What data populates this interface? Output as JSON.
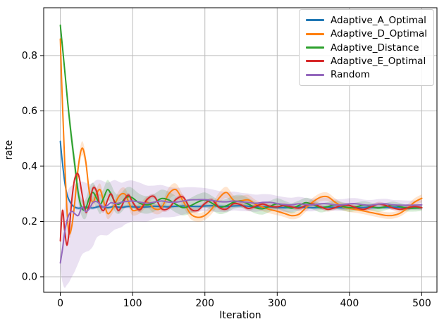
{
  "chart_data": {
    "type": "line",
    "title": "",
    "xlabel": "Iteration",
    "ylabel": "rate",
    "xlim": [
      -23,
      521
    ],
    "ylim": [
      -0.056,
      0.973
    ],
    "grid": true,
    "legend_position": "upper right",
    "band_opacity": 0.2,
    "grid_color": "#bcbcbc",
    "axis_color": "#000000",
    "x_ticks": {
      "values": [
        0,
        100,
        200,
        300,
        400,
        500
      ],
      "labels": [
        "0",
        "100",
        "200",
        "300",
        "400",
        "500"
      ]
    },
    "y_ticks": {
      "values": [
        0.0,
        0.2,
        0.4,
        0.6,
        0.8
      ],
      "labels": [
        "0.0",
        "0.2",
        "0.4",
        "0.6",
        "0.8"
      ]
    },
    "x": [
      0,
      3,
      6,
      9,
      12,
      16,
      20,
      25,
      30,
      35,
      40,
      45,
      50,
      55,
      60,
      65,
      70,
      75,
      80,
      85,
      90,
      95,
      100,
      110,
      120,
      130,
      140,
      150,
      160,
      170,
      180,
      190,
      200,
      210,
      220,
      230,
      240,
      250,
      260,
      270,
      280,
      290,
      300,
      310,
      320,
      330,
      340,
      350,
      360,
      370,
      380,
      390,
      400,
      410,
      420,
      430,
      440,
      450,
      460,
      470,
      480,
      490,
      500
    ],
    "series": [
      {
        "name": "Adaptive_A_Optimal",
        "color": "#1f77b4",
        "y": [
          0.49,
          0.41,
          0.345,
          0.3,
          0.278,
          0.26,
          0.252,
          0.248,
          0.25,
          0.252,
          0.25,
          0.249,
          0.252,
          0.254,
          0.252,
          0.25,
          0.252,
          0.254,
          0.252,
          0.251,
          0.253,
          0.254,
          0.253,
          0.252,
          0.253,
          0.255,
          0.254,
          0.253,
          0.255,
          0.256,
          0.255,
          0.254,
          0.256,
          0.257,
          0.255,
          0.254,
          0.256,
          0.257,
          0.255,
          0.253,
          0.253,
          0.253,
          0.251,
          0.25,
          0.251,
          0.252,
          0.251,
          0.25,
          0.251,
          0.252,
          0.251,
          0.25,
          0.249,
          0.25,
          0.251,
          0.251,
          0.25,
          0.251,
          0.252,
          0.251,
          0.25,
          0.25,
          0.25
        ],
        "band_width": 0.006
      },
      {
        "name": "Adaptive_D_Optimal",
        "color": "#ff7f0e",
        "y": [
          0.86,
          0.62,
          0.42,
          0.25,
          0.158,
          0.185,
          0.27,
          0.4,
          0.465,
          0.42,
          0.31,
          0.27,
          0.3,
          0.315,
          0.272,
          0.23,
          0.237,
          0.26,
          0.287,
          0.3,
          0.297,
          0.268,
          0.24,
          0.247,
          0.27,
          0.246,
          0.25,
          0.3,
          0.315,
          0.273,
          0.228,
          0.215,
          0.222,
          0.247,
          0.286,
          0.305,
          0.276,
          0.275,
          0.278,
          0.262,
          0.252,
          0.243,
          0.237,
          0.229,
          0.221,
          0.226,
          0.25,
          0.272,
          0.288,
          0.289,
          0.27,
          0.254,
          0.247,
          0.243,
          0.238,
          0.232,
          0.227,
          0.222,
          0.222,
          0.23,
          0.248,
          0.27,
          0.284
        ],
        "band_width": [
          0.005,
          0.008,
          0.012,
          0.015,
          0.015,
          0.018,
          0.02,
          0.023,
          0.025,
          0.022,
          0.02,
          0.02,
          0.02,
          0.022,
          0.02,
          0.02,
          0.018,
          0.018,
          0.02,
          0.022,
          0.022,
          0.02,
          0.018,
          0.018,
          0.02,
          0.018,
          0.018,
          0.022,
          0.022,
          0.02,
          0.018,
          0.016,
          0.016,
          0.018,
          0.02,
          0.02,
          0.018,
          0.018,
          0.018,
          0.016,
          0.015,
          0.014,
          0.014,
          0.013,
          0.013,
          0.013,
          0.014,
          0.015,
          0.015,
          0.015,
          0.014,
          0.013,
          0.013,
          0.012,
          0.012,
          0.012,
          0.012,
          0.012,
          0.012,
          0.012,
          0.013,
          0.014,
          0.014
        ]
      },
      {
        "name": "Adaptive_Distance",
        "color": "#2ca02c",
        "y": [
          0.91,
          0.83,
          0.75,
          0.665,
          0.585,
          0.49,
          0.405,
          0.3,
          0.247,
          0.246,
          0.285,
          0.305,
          0.285,
          0.262,
          0.285,
          0.315,
          0.3,
          0.272,
          0.262,
          0.27,
          0.285,
          0.29,
          0.285,
          0.266,
          0.26,
          0.268,
          0.283,
          0.278,
          0.262,
          0.25,
          0.257,
          0.27,
          0.278,
          0.266,
          0.252,
          0.257,
          0.27,
          0.273,
          0.263,
          0.25,
          0.246,
          0.255,
          0.264,
          0.256,
          0.248,
          0.258,
          0.268,
          0.26,
          0.25,
          0.254,
          0.26,
          0.255,
          0.25,
          0.254,
          0.259,
          0.254,
          0.249,
          0.254,
          0.259,
          0.254,
          0.248,
          0.248,
          0.25
        ],
        "band_width": [
          0.008,
          0.012,
          0.018,
          0.025,
          0.03,
          0.035,
          0.035,
          0.03,
          0.03,
          0.035,
          0.035,
          0.035,
          0.035,
          0.035,
          0.035,
          0.035,
          0.035,
          0.035,
          0.035,
          0.035,
          0.035,
          0.035,
          0.035,
          0.033,
          0.032,
          0.032,
          0.032,
          0.03,
          0.03,
          0.028,
          0.028,
          0.028,
          0.027,
          0.026,
          0.025,
          0.025,
          0.024,
          0.023,
          0.022,
          0.021,
          0.021,
          0.02,
          0.02,
          0.019,
          0.019,
          0.018,
          0.018,
          0.017,
          0.017,
          0.016,
          0.016,
          0.015,
          0.015,
          0.015,
          0.014,
          0.014,
          0.014,
          0.013,
          0.013,
          0.013,
          0.012,
          0.012,
          0.012
        ]
      },
      {
        "name": "Adaptive_E_Optimal",
        "color": "#d62728",
        "y": [
          0.13,
          0.24,
          0.17,
          0.115,
          0.16,
          0.28,
          0.355,
          0.37,
          0.3,
          0.235,
          0.26,
          0.32,
          0.31,
          0.256,
          0.24,
          0.275,
          0.3,
          0.27,
          0.24,
          0.256,
          0.285,
          0.295,
          0.27,
          0.242,
          0.28,
          0.29,
          0.246,
          0.248,
          0.28,
          0.288,
          0.246,
          0.24,
          0.265,
          0.277,
          0.25,
          0.245,
          0.265,
          0.26,
          0.247,
          0.255,
          0.263,
          0.255,
          0.253,
          0.258,
          0.253,
          0.248,
          0.258,
          0.263,
          0.253,
          0.244,
          0.25,
          0.258,
          0.258,
          0.249,
          0.244,
          0.253,
          0.263,
          0.258,
          0.249,
          0.244,
          0.249,
          0.254,
          0.25
        ],
        "band_width": 0.008
      },
      {
        "name": "Random",
        "color": "#9467bd",
        "y": [
          0.05,
          0.1,
          0.16,
          0.2,
          0.225,
          0.237,
          0.228,
          0.222,
          0.252,
          0.236,
          0.245,
          0.268,
          0.272,
          0.262,
          0.252,
          0.258,
          0.268,
          0.265,
          0.266,
          0.27,
          0.272,
          0.273,
          0.274,
          0.27,
          0.266,
          0.27,
          0.274,
          0.27,
          0.27,
          0.274,
          0.278,
          0.279,
          0.279,
          0.276,
          0.272,
          0.271,
          0.274,
          0.271,
          0.269,
          0.266,
          0.269,
          0.269,
          0.265,
          0.261,
          0.26,
          0.264,
          0.261,
          0.26,
          0.264,
          0.264,
          0.26,
          0.26,
          0.264,
          0.264,
          0.26,
          0.259,
          0.263,
          0.264,
          0.26,
          0.259,
          0.259,
          0.259,
          0.26
        ],
        "band_lo": [
          0.03,
          -0.02,
          -0.04,
          -0.03,
          -0.02,
          0.0,
          0.02,
          0.05,
          0.08,
          0.09,
          0.095,
          0.11,
          0.14,
          0.15,
          0.15,
          0.15,
          0.16,
          0.17,
          0.175,
          0.18,
          0.19,
          0.195,
          0.2,
          0.2,
          0.2,
          0.21,
          0.215,
          0.215,
          0.218,
          0.225,
          0.232,
          0.235,
          0.237,
          0.236,
          0.234,
          0.235,
          0.24,
          0.238,
          0.237,
          0.235,
          0.239,
          0.24,
          0.237,
          0.234,
          0.234,
          0.239,
          0.237,
          0.237,
          0.242,
          0.242,
          0.239,
          0.239,
          0.244,
          0.244,
          0.241,
          0.24,
          0.245,
          0.246,
          0.242,
          0.241,
          0.242,
          0.242,
          0.243
        ],
        "band_hi": [
          0.07,
          0.17,
          0.25,
          0.3,
          0.32,
          0.33,
          0.335,
          0.34,
          0.345,
          0.34,
          0.335,
          0.34,
          0.35,
          0.35,
          0.345,
          0.34,
          0.345,
          0.35,
          0.345,
          0.34,
          0.345,
          0.348,
          0.348,
          0.34,
          0.33,
          0.33,
          0.332,
          0.325,
          0.322,
          0.323,
          0.324,
          0.323,
          0.321,
          0.316,
          0.31,
          0.307,
          0.308,
          0.304,
          0.301,
          0.297,
          0.299,
          0.298,
          0.293,
          0.288,
          0.286,
          0.289,
          0.285,
          0.283,
          0.286,
          0.286,
          0.281,
          0.281,
          0.284,
          0.284,
          0.279,
          0.278,
          0.281,
          0.282,
          0.278,
          0.277,
          0.276,
          0.276,
          0.277
        ]
      }
    ]
  }
}
